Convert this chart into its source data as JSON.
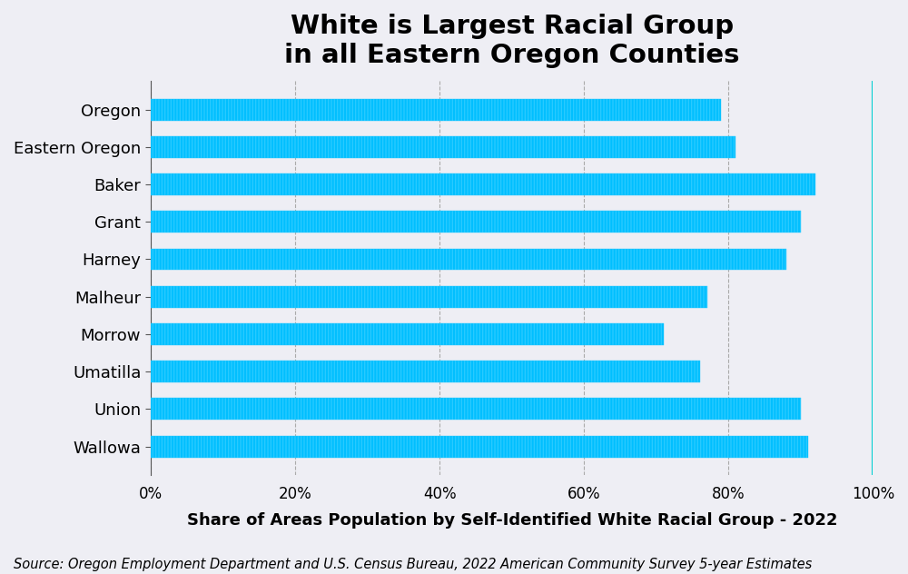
{
  "title": "White is Largest Racial Group\nin all Eastern Oregon Counties",
  "xlabel": "Share of Areas Population by Self-Identified White Racial Group - 2022",
  "source": "Source: Oregon Employment Department and U.S. Census Bureau, 2022 American Community Survey 5-year Estimates",
  "categories": [
    "Wallowa",
    "Union",
    "Umatilla",
    "Morrow",
    "Malheur",
    "Harney",
    "Grant",
    "Baker",
    "Eastern Oregon",
    "Oregon"
  ],
  "values": [
    91,
    90,
    76,
    71,
    77,
    88,
    90,
    92,
    81,
    79
  ],
  "bar_color": "#00BFFF",
  "hatch_color": "#29CAFF",
  "background_color": "#EEEEF4",
  "grid_color": "#AAAAAA",
  "right_line_color": "#00CED1",
  "xlim": [
    0,
    100
  ],
  "xtick_labels": [
    "0%",
    "20%",
    "40%",
    "60%",
    "80%",
    "100%"
  ],
  "xtick_values": [
    0,
    20,
    40,
    60,
    80,
    100
  ],
  "title_fontsize": 21,
  "xlabel_fontsize": 13,
  "source_fontsize": 10.5,
  "tick_fontsize": 12,
  "ytick_fontsize": 13,
  "bar_height": 0.58
}
